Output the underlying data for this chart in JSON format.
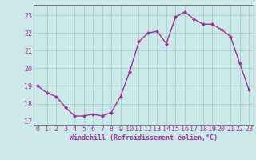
{
  "x": [
    0,
    1,
    2,
    3,
    4,
    5,
    6,
    7,
    8,
    9,
    10,
    11,
    12,
    13,
    14,
    15,
    16,
    17,
    18,
    19,
    20,
    21,
    22,
    23
  ],
  "y": [
    19.0,
    18.6,
    18.4,
    17.8,
    17.3,
    17.3,
    17.4,
    17.3,
    17.5,
    18.4,
    19.8,
    21.5,
    22.0,
    22.1,
    21.4,
    22.9,
    23.2,
    22.8,
    22.5,
    22.5,
    22.2,
    21.8,
    20.3,
    18.8
  ],
  "line_color": "#993399",
  "marker": "D",
  "marker_size": 2.0,
  "linewidth": 1.0,
  "bg_color": "#cce8e8",
  "grid_color": "#99cccc",
  "xlabel": "Windchill (Refroidissement éolien,°C)",
  "xlabel_color": "#993399",
  "xlabel_fontsize": 6.0,
  "tick_color": "#993399",
  "tick_fontsize": 6.0,
  "ytick_color": "#993399",
  "ytick_fontsize": 6.0,
  "ylim": [
    16.8,
    23.6
  ],
  "xlim": [
    -0.5,
    23.5
  ],
  "yticks": [
    17,
    18,
    19,
    20,
    21,
    22,
    23
  ],
  "xticks": [
    0,
    1,
    2,
    3,
    4,
    5,
    6,
    7,
    8,
    9,
    10,
    11,
    12,
    13,
    14,
    15,
    16,
    17,
    18,
    19,
    20,
    21,
    22,
    23
  ]
}
